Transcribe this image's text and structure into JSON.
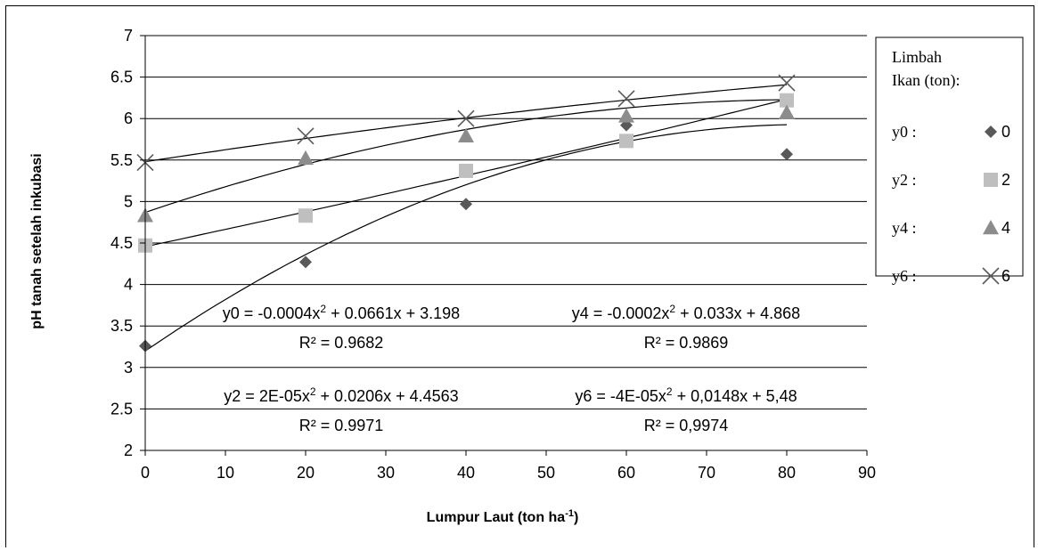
{
  "chart_data": {
    "type": "scatter",
    "xlabel": "Lumpur Laut (ton ha",
    "xlabel_sup": "-1",
    "xlabel_end": ")",
    "ylabel": "pH  tanah  setelah   inkubasi",
    "xlim": [
      0,
      90
    ],
    "ylim": [
      2,
      7
    ],
    "x_ticks": [
      "0",
      "10",
      "20",
      "30",
      "40",
      "50",
      "60",
      "70",
      "80",
      "90"
    ],
    "y_ticks": [
      "2",
      "2.5",
      "3",
      "3.5",
      "4",
      "4.5",
      "5",
      "5.5",
      "6",
      "6.5",
      "7"
    ],
    "grid": "horizontal",
    "legend_title": [
      "Limbah",
      "Ikan (ton):"
    ],
    "legend_position": "right",
    "series": [
      {
        "name": "0",
        "label": "y0 :",
        "marker": "diamond",
        "color": "#595959",
        "x": [
          0,
          20,
          40,
          60,
          80
        ],
        "y": [
          3.26,
          4.27,
          4.97,
          5.92,
          5.57
        ],
        "fit": {
          "a": -0.0004,
          "b": 0.0661,
          "c": 3.198
        }
      },
      {
        "name": "2",
        "label": "y2 :",
        "marker": "square",
        "color": "#bfbfbf",
        "x": [
          0,
          20,
          40,
          60,
          80
        ],
        "y": [
          4.47,
          4.83,
          5.37,
          5.73,
          6.22
        ],
        "fit": {
          "a": 2e-05,
          "b": 0.0206,
          "c": 4.4563
        }
      },
      {
        "name": "4",
        "label": "y4 :",
        "marker": "triangle",
        "color": "#8c8c8c",
        "x": [
          0,
          20,
          40,
          60,
          80
        ],
        "y": [
          4.83,
          5.52,
          5.79,
          6.03,
          6.07
        ],
        "fit": {
          "a": -0.0002,
          "b": 0.033,
          "c": 4.868
        }
      },
      {
        "name": "6",
        "label": "y6 :",
        "marker": "x",
        "color": "#595959",
        "x": [
          0,
          20,
          40,
          60,
          80
        ],
        "y": [
          5.47,
          5.79,
          6.0,
          6.24,
          6.43
        ],
        "fit": {
          "a": -4e-05,
          "b": 0.0148,
          "c": 5.48
        }
      }
    ],
    "annotations": [
      {
        "eq_prefix": "y0 = -0.0004x",
        "eq_suffix": " + 0.0661x + 3.198",
        "r2": "R² = 0.9682"
      },
      {
        "eq_prefix": "y4 = -0.0002x",
        "eq_suffix": " + 0.033x + 4.868",
        "r2": "R² = 0.9869"
      },
      {
        "eq_prefix": "y2 = 2E-05x",
        "eq_suffix": " + 0.0206x + 4.4563",
        "r2": "R² = 0.9971"
      },
      {
        "eq_prefix": "y6 = -4E-05x",
        "eq_suffix": " + 0,0148x + 5,48",
        "r2": "R² = 0,9974"
      }
    ],
    "sup2": "2"
  }
}
